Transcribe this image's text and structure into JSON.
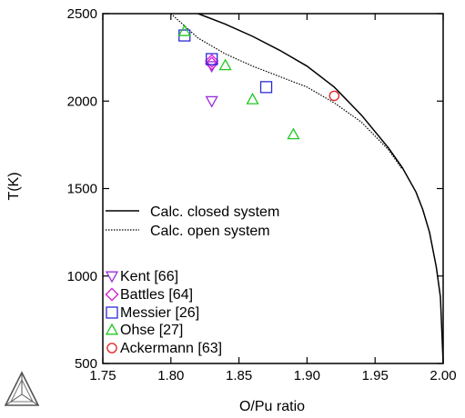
{
  "chart_data": {
    "type": "scatter",
    "xlabel": "O/Pu ratio",
    "ylabel": "T(K)",
    "xlim": [
      1.75,
      2.0
    ],
    "ylim": [
      500,
      2500
    ],
    "xticks": [
      1.75,
      1.8,
      1.85,
      1.9,
      1.95,
      2.0
    ],
    "xtick_labels": [
      "1.75",
      "1.80",
      "1.85",
      "1.90",
      "1.95",
      "2.00"
    ],
    "yticks": [
      500,
      1000,
      1500,
      2000,
      2500
    ],
    "ytick_labels": [
      "500",
      "1000",
      "1500",
      "2000",
      "2500"
    ],
    "grid": false,
    "lines": [
      {
        "name": "Calc. closed system",
        "style": "solid",
        "color": "#000000",
        "points": [
          [
            1.82,
            2500
          ],
          [
            1.84,
            2440
          ],
          [
            1.86,
            2370
          ],
          [
            1.88,
            2290
          ],
          [
            1.9,
            2200
          ],
          [
            1.92,
            2080
          ],
          [
            1.94,
            1920
          ],
          [
            1.96,
            1730
          ],
          [
            1.97,
            1620
          ],
          [
            1.98,
            1480
          ],
          [
            1.985,
            1380
          ],
          [
            1.99,
            1250
          ],
          [
            1.995,
            1050
          ],
          [
            1.998,
            880
          ],
          [
            2.0,
            500
          ]
        ]
      },
      {
        "name": "Calc. open system",
        "style": "dotted",
        "color": "#000000",
        "points": [
          [
            1.8,
            2500
          ],
          [
            1.82,
            2360
          ],
          [
            1.84,
            2270
          ],
          [
            1.86,
            2200
          ],
          [
            1.88,
            2140
          ],
          [
            1.9,
            2080
          ],
          [
            1.92,
            1990
          ],
          [
            1.94,
            1880
          ],
          [
            1.96,
            1720
          ],
          [
            1.97,
            1610
          ]
        ]
      }
    ],
    "series": [
      {
        "name": "Kent [66]",
        "marker": "triangle-down",
        "color": "#9b30d9",
        "points": [
          [
            1.83,
            2200
          ],
          [
            1.83,
            2000
          ]
        ]
      },
      {
        "name": "Battles [64]",
        "marker": "diamond",
        "color": "#d61ad6",
        "points": [
          [
            1.83,
            2230
          ],
          [
            1.83,
            2215
          ]
        ]
      },
      {
        "name": "Messier [26]",
        "marker": "square",
        "color": "#2b2bd6",
        "points": [
          [
            1.81,
            2375
          ],
          [
            1.83,
            2240
          ],
          [
            1.87,
            2080
          ]
        ]
      },
      {
        "name": "Ohse [27]",
        "marker": "triangle-up",
        "color": "#22c722",
        "points": [
          [
            1.81,
            2400
          ],
          [
            1.84,
            2205
          ],
          [
            1.86,
            2010
          ],
          [
            1.89,
            1810
          ]
        ]
      },
      {
        "name": "Ackermann [63]",
        "marker": "circle",
        "color": "#e02020",
        "points": [
          [
            1.92,
            2030
          ]
        ]
      }
    ]
  }
}
